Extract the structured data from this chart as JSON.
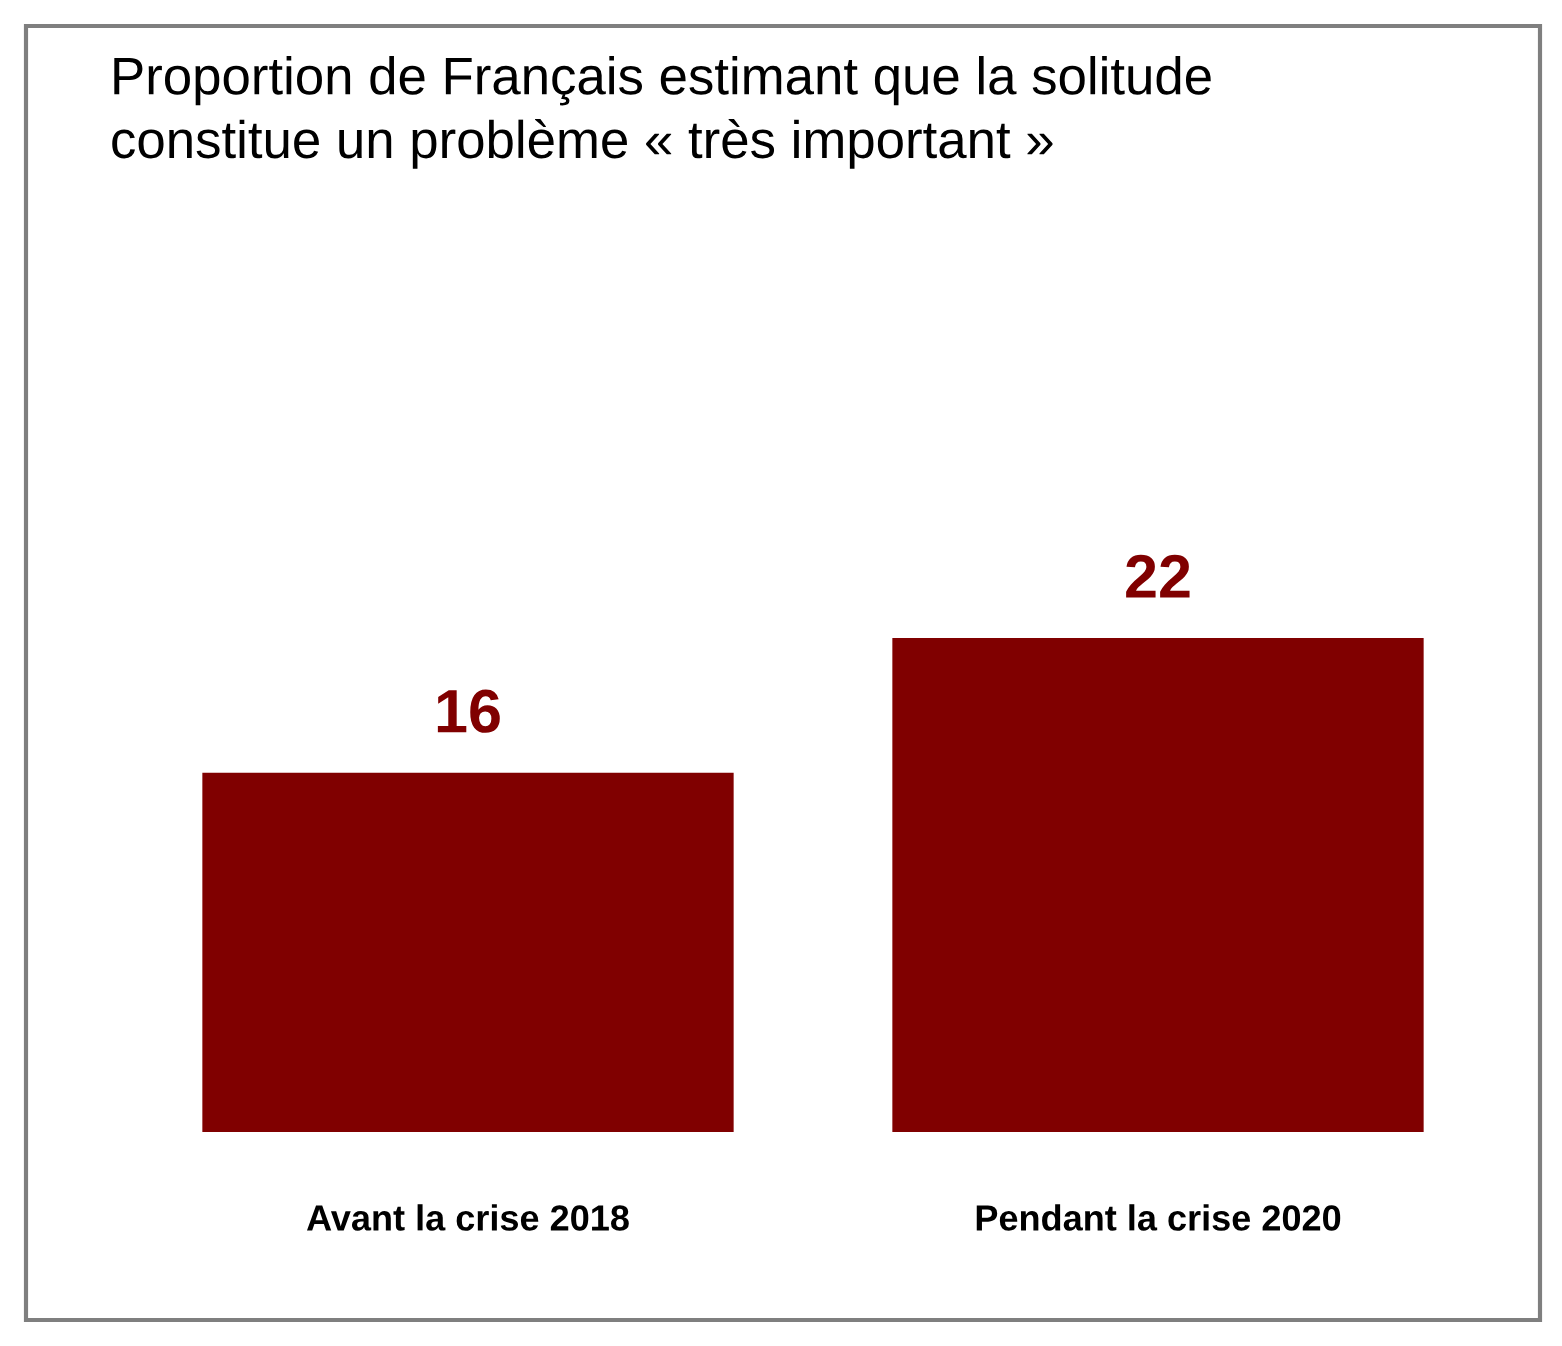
{
  "chart_data": {
    "type": "bar",
    "title": "Proportion de Français estimant que la solitude\nconstitue un problème « très important »",
    "categories": [
      "Avant la crise 2018",
      "Pendant la crise 2020"
    ],
    "values": [
      16,
      22
    ],
    "color": "#800000",
    "data_labels": true
  }
}
